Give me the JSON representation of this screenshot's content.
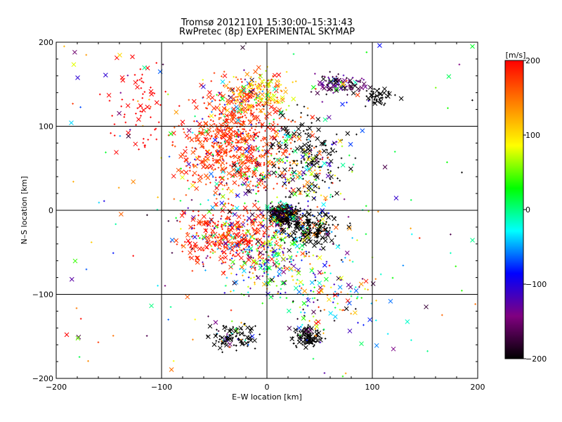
{
  "chart_data": {
    "type": "scatter",
    "title": "Tromsø 20121101 15:30:00–15:31:43",
    "subtitle": "RwPretec (8p) EXPERIMENTAL SKYMAP",
    "xlabel": "E–W location [km]",
    "ylabel": "N–S location [km]",
    "xlim": [
      -200,
      200
    ],
    "ylim": [
      -200,
      200
    ],
    "xticks": [
      "−200",
      "−100",
      "0",
      "100",
      "200"
    ],
    "yticks": [
      "−200",
      "−100",
      "0",
      "100",
      "200"
    ],
    "grid": true,
    "colorbar": {
      "label": "[m/s]",
      "range": [
        -200,
        200
      ],
      "ticks": [
        "200",
        "100",
        "0",
        "−100",
        "−200"
      ],
      "colormap": [
        "#000000",
        "#800080",
        "#0000ff",
        "#00ffff",
        "#00ff00",
        "#ffff00",
        "#ff8000",
        "#ff0000"
      ],
      "placement": "right"
    },
    "markers": {
      "plus": "small +",
      "cross": "×"
    },
    "series_summary": [
      {
        "x": 12,
        "y": -8,
        "velocity": -180,
        "marker": "cross"
      },
      {
        "x": -40,
        "y": 160,
        "velocity": 200,
        "marker": "cross"
      },
      {
        "x": 65,
        "y": 155,
        "velocity": -200,
        "marker": "cross"
      },
      {
        "x": 40,
        "y": -150,
        "velocity": -200,
        "marker": "cross"
      },
      {
        "x": 120,
        "y": -165,
        "velocity": -140,
        "marker": "cross"
      },
      {
        "x": 185,
        "y": 45,
        "velocity": -200,
        "marker": "plus"
      },
      {
        "x": -190,
        "y": -148,
        "velocity": 200,
        "marker": "cross"
      },
      {
        "x": 195,
        "y": 195,
        "velocity": 20,
        "marker": "cross"
      }
    ]
  }
}
